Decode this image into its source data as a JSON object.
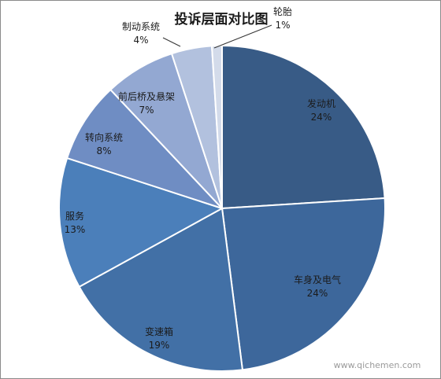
{
  "chart_data": {
    "type": "pie",
    "title": "投诉层面对比图",
    "categories": [
      "发动机",
      "车身及电气",
      "变速箱",
      "服务",
      "转向系统",
      "前后桥及悬架",
      "制动系统",
      "轮胎"
    ],
    "values": [
      24,
      24,
      19,
      13,
      8,
      7,
      4,
      1
    ],
    "value_labels": [
      "24%",
      "24%",
      "19%",
      "13%",
      "8%",
      "7%",
      "4%",
      "1%"
    ],
    "colors": [
      "#385b86",
      "#3d679b",
      "#4270a6",
      "#4b7fba",
      "#6f8dc3",
      "#93a8d2",
      "#b2c1de",
      "#d3dbea"
    ],
    "legend": "none",
    "grid": false
  },
  "watermark": "www.qichemen.com"
}
